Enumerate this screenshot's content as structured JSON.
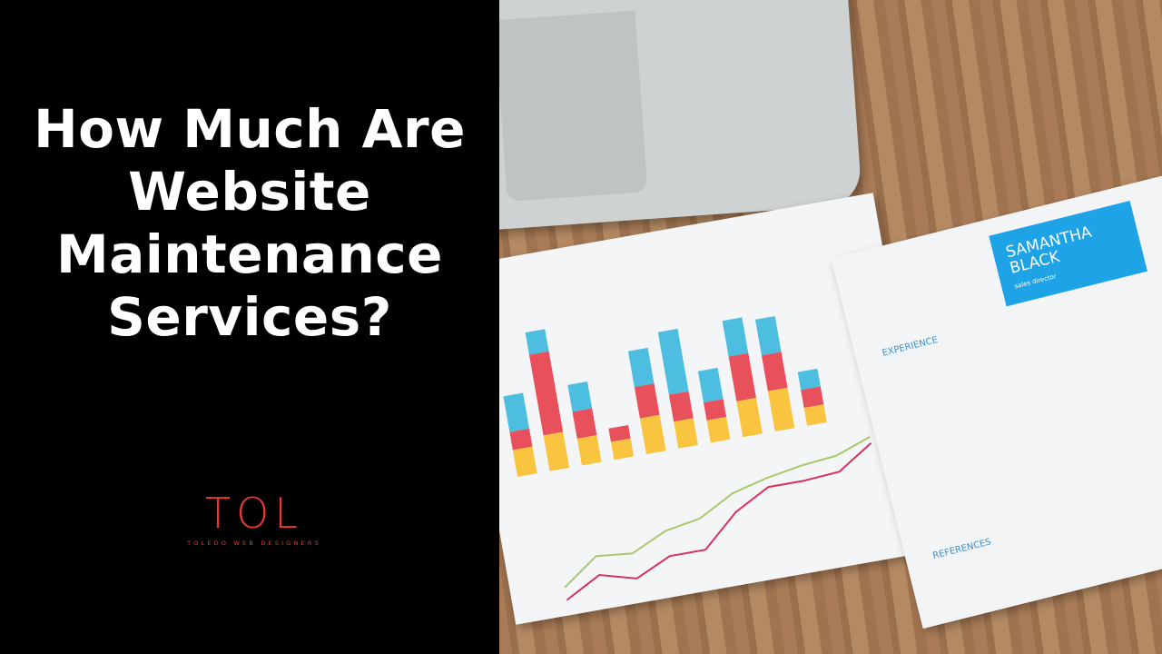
{
  "title": "How Much Are Website Maintenance Services?",
  "logo": {
    "mark": "TOL",
    "tagline": "TOLEDO WEB DESIGNERS",
    "color": "#e53935"
  },
  "photo": {
    "resume_name": "SAMANTHA BLACK",
    "resume_role": "sales director",
    "section_experience": "EXPERIENCE",
    "section_references": "REFERENCES",
    "bar_colors": [
      "#f9c440",
      "#e8505b",
      "#4dbde0"
    ]
  }
}
